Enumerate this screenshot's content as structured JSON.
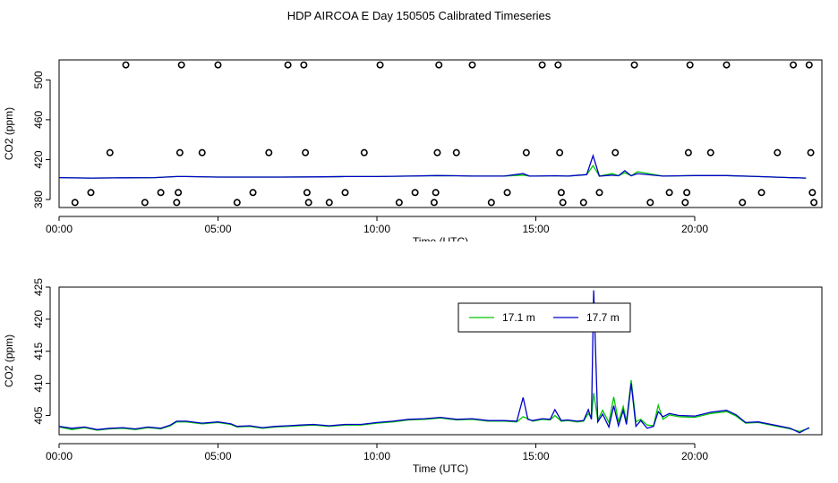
{
  "page": {
    "title": "HDP AIRCOA E  Day 150505  Calibrated Timeseries"
  },
  "chart_data": [
    {
      "type": "scatter",
      "title": "",
      "xlabel": "Time (UTC)",
      "ylabel": "CO2 (ppm)",
      "xlim": [
        0,
        24
      ],
      "ylim": [
        372,
        520
      ],
      "xticks": [
        0,
        5,
        10,
        15,
        20
      ],
      "xtick_labels": [
        "00:00",
        "05:00",
        "10:00",
        "15:00",
        "20:00"
      ],
      "yticks": [
        380,
        420,
        460,
        500
      ],
      "ytick_labels": [
        "380",
        "420",
        "460",
        "500"
      ],
      "grid": false,
      "marker": "open-circle",
      "points": [
        [
          0.5,
          377
        ],
        [
          1.0,
          387
        ],
        [
          1.6,
          427
        ],
        [
          2.1,
          515
        ],
        [
          2.7,
          377
        ],
        [
          3.2,
          387
        ],
        [
          3.7,
          377
        ],
        [
          3.75,
          387
        ],
        [
          3.8,
          427
        ],
        [
          3.85,
          515
        ],
        [
          4.5,
          427
        ],
        [
          5.0,
          515
        ],
        [
          5.6,
          377
        ],
        [
          6.1,
          387
        ],
        [
          6.6,
          427
        ],
        [
          7.2,
          515
        ],
        [
          7.7,
          515
        ],
        [
          7.75,
          427
        ],
        [
          7.8,
          387
        ],
        [
          7.85,
          377
        ],
        [
          8.5,
          377
        ],
        [
          9.0,
          387
        ],
        [
          9.6,
          427
        ],
        [
          10.1,
          515
        ],
        [
          10.7,
          377
        ],
        [
          11.2,
          387
        ],
        [
          11.8,
          377
        ],
        [
          11.85,
          387
        ],
        [
          11.9,
          427
        ],
        [
          11.95,
          515
        ],
        [
          12.5,
          427
        ],
        [
          13.0,
          515
        ],
        [
          13.6,
          377
        ],
        [
          14.1,
          387
        ],
        [
          14.7,
          427
        ],
        [
          15.2,
          515
        ],
        [
          15.7,
          515
        ],
        [
          15.75,
          427
        ],
        [
          15.8,
          387
        ],
        [
          15.85,
          377
        ],
        [
          16.5,
          377
        ],
        [
          17.0,
          387
        ],
        [
          17.5,
          427
        ],
        [
          18.1,
          515
        ],
        [
          18.6,
          377
        ],
        [
          19.2,
          387
        ],
        [
          19.7,
          377
        ],
        [
          19.75,
          387
        ],
        [
          19.8,
          427
        ],
        [
          19.85,
          515
        ],
        [
          20.5,
          427
        ],
        [
          21.0,
          515
        ],
        [
          21.5,
          377
        ],
        [
          22.1,
          387
        ],
        [
          22.6,
          427
        ],
        [
          23.1,
          515
        ],
        [
          23.6,
          515
        ],
        [
          23.65,
          427
        ],
        [
          23.7,
          387
        ],
        [
          23.75,
          377
        ]
      ],
      "series": [
        {
          "color": "#00c800",
          "x": [
            0,
            1,
            2,
            3,
            3.7,
            4,
            5,
            6,
            7,
            8,
            9,
            10,
            11,
            11.9,
            12.5,
            13,
            14,
            14.6,
            14.8,
            15,
            15.6,
            16,
            16.6,
            16.8,
            17,
            17.4,
            17.6,
            17.8,
            18,
            18.2,
            19,
            20,
            21,
            22,
            23,
            23.5
          ],
          "y": [
            402,
            401.5,
            401.8,
            402,
            403,
            403,
            402.5,
            402.5,
            402.5,
            402.7,
            403,
            403,
            403.5,
            404,
            403.8,
            403.5,
            403.5,
            404.5,
            403.5,
            403.5,
            403.8,
            403.5,
            405,
            414,
            403.5,
            406,
            403.8,
            407,
            403.8,
            408,
            403.5,
            404,
            404,
            403,
            402,
            401.5
          ]
        },
        {
          "color": "#0000c8",
          "x": [
            0,
            1,
            2,
            3,
            3.7,
            4,
            5,
            6,
            7,
            8,
            9,
            10,
            11,
            11.9,
            12.5,
            13,
            14,
            14.6,
            14.8,
            15,
            15.6,
            16,
            16.6,
            16.8,
            17,
            17.4,
            17.6,
            17.8,
            18,
            18.2,
            19,
            20,
            21,
            22,
            23,
            23.5
          ],
          "y": [
            402,
            401.5,
            401.8,
            402,
            403,
            403,
            402.5,
            402.5,
            402.5,
            402.7,
            403,
            403,
            403.5,
            404,
            403.8,
            403.5,
            403.5,
            406,
            403.5,
            403.5,
            403.8,
            403.5,
            405,
            424,
            403.5,
            404.5,
            403.8,
            409,
            403.8,
            406,
            403.5,
            404,
            404,
            403,
            402,
            401.5
          ]
        }
      ]
    },
    {
      "type": "line",
      "title": "",
      "xlabel": "Time (UTC)",
      "ylabel": "CO2 (ppm)",
      "xlim": [
        0,
        24
      ],
      "ylim": [
        402,
        425
      ],
      "xticks": [
        0,
        5,
        10,
        15,
        20
      ],
      "xtick_labels": [
        "00:00",
        "05:00",
        "10:00",
        "15:00",
        "20:00"
      ],
      "yticks": [
        405,
        410,
        415,
        420,
        425
      ],
      "ytick_labels": [
        "405",
        "410",
        "415",
        "420",
        "425"
      ],
      "grid": false,
      "legend": "top-center",
      "series": [
        {
          "name": "17.1 m",
          "color": "#00c800",
          "x": [
            0,
            0.4,
            0.8,
            1.2,
            1.6,
            2.0,
            2.4,
            2.8,
            3.2,
            3.5,
            3.7,
            4.0,
            4.5,
            5.0,
            5.4,
            5.6,
            6.0,
            6.4,
            6.8,
            7.2,
            7.6,
            8.0,
            8.5,
            9.0,
            9.5,
            10.0,
            10.5,
            11.0,
            11.5,
            12.0,
            12.5,
            13.0,
            13.5,
            14.0,
            14.4,
            14.6,
            14.75,
            14.9,
            15.2,
            15.45,
            15.6,
            15.8,
            16.0,
            16.3,
            16.5,
            16.65,
            16.75,
            16.82,
            16.95,
            17.1,
            17.3,
            17.45,
            17.6,
            17.75,
            17.85,
            18.0,
            18.15,
            18.3,
            18.5,
            18.7,
            18.85,
            19.0,
            19.2,
            19.5,
            20.0,
            20.5,
            21.0,
            21.3,
            21.6,
            22.0,
            22.5,
            23.0,
            23.3,
            23.6
          ],
          "y": [
            403.2,
            402.8,
            403.1,
            402.7,
            402.9,
            403.0,
            402.8,
            403.1,
            402.9,
            403.4,
            404.0,
            404.0,
            403.7,
            403.9,
            403.6,
            403.2,
            403.3,
            403.0,
            403.2,
            403.3,
            403.4,
            403.5,
            403.3,
            403.5,
            403.5,
            403.8,
            404.0,
            404.3,
            404.4,
            404.6,
            404.3,
            404.4,
            404.1,
            404.1,
            404.0,
            404.8,
            404.5,
            404.1,
            404.4,
            404.3,
            405.0,
            404.1,
            404.2,
            404.0,
            404.1,
            405.3,
            404.6,
            408.5,
            404.3,
            405.8,
            403.9,
            407.9,
            404.0,
            406.4,
            404.1,
            410.5,
            404.0,
            404.4,
            403.5,
            403.4,
            406.6,
            404.4,
            405.1,
            404.8,
            404.7,
            405.3,
            405.6,
            404.9,
            403.8,
            403.9,
            403.4,
            402.9,
            402.5,
            403.0
          ]
        },
        {
          "name": "17.7 m",
          "color": "#0000c8",
          "x": [
            0,
            0.4,
            0.8,
            1.2,
            1.6,
            2.0,
            2.4,
            2.8,
            3.2,
            3.5,
            3.7,
            4.0,
            4.5,
            5.0,
            5.4,
            5.6,
            6.0,
            6.4,
            6.8,
            7.2,
            7.6,
            8.0,
            8.5,
            9.0,
            9.5,
            10.0,
            10.5,
            11.0,
            11.5,
            12.0,
            12.5,
            13.0,
            13.5,
            14.0,
            14.4,
            14.6,
            14.75,
            14.9,
            15.2,
            15.45,
            15.6,
            15.8,
            16.0,
            16.3,
            16.5,
            16.65,
            16.75,
            16.82,
            16.95,
            17.1,
            17.3,
            17.45,
            17.6,
            17.75,
            17.85,
            18.0,
            18.15,
            18.3,
            18.5,
            18.7,
            18.85,
            19.0,
            19.2,
            19.5,
            20.0,
            20.5,
            21.0,
            21.3,
            21.6,
            22.0,
            22.5,
            23.0,
            23.3,
            23.6
          ],
          "y": [
            403.3,
            403.0,
            403.2,
            402.8,
            403.0,
            403.1,
            402.9,
            403.2,
            403.0,
            403.5,
            404.1,
            404.1,
            403.8,
            404.0,
            403.7,
            403.3,
            403.4,
            403.1,
            403.3,
            403.4,
            403.5,
            403.6,
            403.4,
            403.6,
            403.6,
            403.9,
            404.1,
            404.4,
            404.5,
            404.7,
            404.4,
            404.5,
            404.2,
            404.2,
            404.1,
            407.8,
            404.4,
            404.2,
            404.5,
            404.4,
            405.9,
            404.2,
            404.3,
            404.1,
            404.2,
            405.9,
            404.4,
            424.5,
            404.0,
            405.2,
            403.2,
            406.5,
            403.4,
            405.8,
            403.6,
            410.0,
            403.3,
            404.2,
            403.0,
            403.3,
            405.6,
            404.8,
            405.3,
            405.0,
            404.9,
            405.5,
            405.8,
            405.1,
            403.9,
            404.0,
            403.5,
            403.0,
            402.3,
            403.1
          ]
        }
      ]
    }
  ]
}
